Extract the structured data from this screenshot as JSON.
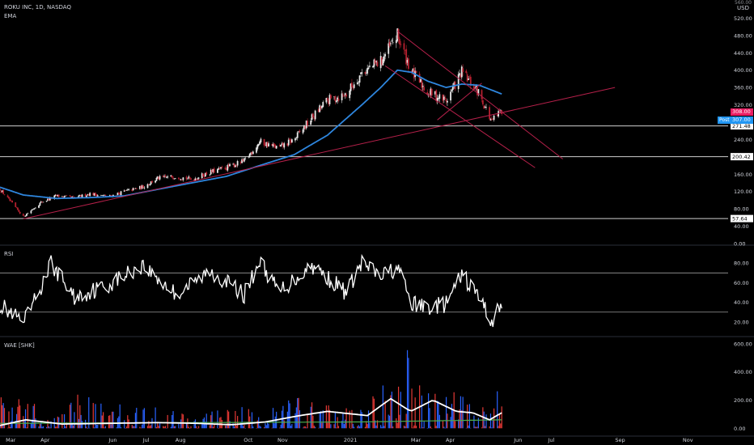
{
  "header": {
    "symbol": "ROKU INC, 1D, NASDAQ",
    "indicator": "EMA",
    "currency": "USD",
    "top_value": "560.00"
  },
  "colors": {
    "up": "#e8e8e8",
    "down": "#b5202f",
    "ema": "#2e86de",
    "trend": "#b5204a",
    "grid": "#cfcfcf",
    "rsi": "#ffffff",
    "wae_up": "#2962ff",
    "wae_down": "#e53935",
    "wae_line": "#ffffff",
    "wae_signal": "#4caf50"
  },
  "price_badges": {
    "last": {
      "label": "308.00",
      "color": "#e91e63"
    },
    "post_tag": "Post",
    "post": {
      "label": "307.00",
      "color": "#2196f3"
    }
  },
  "levels": [
    {
      "label": "271.48",
      "value": 271.48
    },
    {
      "label": "200.42",
      "value": 200.42
    },
    {
      "label": "57.64",
      "value": 57.64
    }
  ],
  "chart_data": [
    {
      "type": "candlestick",
      "title": "ROKU INC, 1D, NASDAQ",
      "ylim": [
        0,
        560
      ],
      "yticks": [
        0,
        40,
        80,
        120,
        160,
        200,
        240,
        280,
        320,
        360,
        400,
        440,
        480,
        520
      ],
      "ytick_labels": [
        "0.00",
        "40.00",
        "80.00",
        "120.00",
        "160.00",
        "200.00",
        "240.00",
        "280.00",
        "320.00",
        "360.00",
        "400.00",
        "440.00",
        "480.00",
        "520.00"
      ],
      "x_labels": [
        "Mar",
        "Apr",
        "Jun",
        "Jul",
        "Aug",
        "Oct",
        "Nov",
        "2021",
        "Mar",
        "Apr",
        "Jun",
        "Jul",
        "Sep",
        "Nov"
      ],
      "close_anchors": [
        [
          "2020-02-24",
          125
        ],
        [
          "2020-03-16",
          62
        ],
        [
          "2020-04-01",
          95
        ],
        [
          "2020-04-15",
          110
        ],
        [
          "2020-05-01",
          105
        ],
        [
          "2020-05-15",
          115
        ],
        [
          "2020-06-01",
          108
        ],
        [
          "2020-06-15",
          120
        ],
        [
          "2020-07-01",
          130
        ],
        [
          "2020-07-15",
          150
        ],
        [
          "2020-08-01",
          155
        ],
        [
          "2020-08-15",
          148
        ],
        [
          "2020-09-01",
          165
        ],
        [
          "2020-09-15",
          175
        ],
        [
          "2020-10-01",
          190
        ],
        [
          "2020-10-15",
          235
        ],
        [
          "2020-11-01",
          220
        ],
        [
          "2020-11-15",
          240
        ],
        [
          "2020-12-01",
          290
        ],
        [
          "2020-12-15",
          330
        ],
        [
          "2021-01-01",
          345
        ],
        [
          "2021-01-15",
          395
        ],
        [
          "2021-02-01",
          420
        ],
        [
          "2021-02-16",
          480
        ],
        [
          "2021-03-01",
          395
        ],
        [
          "2021-03-15",
          350
        ],
        [
          "2021-04-01",
          330
        ],
        [
          "2021-04-15",
          395
        ],
        [
          "2021-05-01",
          345
        ],
        [
          "2021-05-12",
          280
        ],
        [
          "2021-05-21",
          308
        ]
      ],
      "series": [
        {
          "name": "EMA",
          "points": [
            [
              "2020-02-24",
              130
            ],
            [
              "2020-03-16",
              112
            ],
            [
              "2020-04-15",
              104
            ],
            [
              "2020-05-15",
              106
            ],
            [
              "2020-06-15",
              110
            ],
            [
              "2020-07-15",
              125
            ],
            [
              "2020-08-15",
              140
            ],
            [
              "2020-09-15",
              155
            ],
            [
              "2020-10-15",
              180
            ],
            [
              "2020-11-15",
              205
            ],
            [
              "2020-12-15",
              250
            ],
            [
              "2021-01-15",
              320
            ],
            [
              "2021-02-01",
              360
            ],
            [
              "2021-02-16",
              400
            ],
            [
              "2021-03-01",
              395
            ],
            [
              "2021-03-15",
              375
            ],
            [
              "2021-04-01",
              360
            ],
            [
              "2021-04-15",
              368
            ],
            [
              "2021-05-01",
              365
            ],
            [
              "2021-05-21",
              345
            ]
          ]
        }
      ],
      "trendlines": [
        {
          "from": [
            "2020-03-16",
            57
          ],
          "to": [
            "2021-08-31",
            360
          ]
        },
        {
          "from": [
            "2021-02-16",
            490
          ],
          "to": [
            "2021-07-15",
            195
          ]
        },
        {
          "from": [
            "2021-02-05",
            410
          ],
          "to": [
            "2021-06-20",
            175
          ]
        },
        {
          "from": [
            "2021-03-24",
            285
          ],
          "to": [
            "2021-05-03",
            370
          ]
        }
      ]
    },
    {
      "type": "line",
      "title": "RSI",
      "ylim": [
        10,
        95
      ],
      "yticks": [
        20,
        40,
        60,
        80
      ],
      "ytick_labels": [
        "20.00",
        "40.00",
        "60.00",
        "80.00"
      ],
      "bands": [
        70,
        30
      ],
      "anchors": [
        [
          "2020-02-24",
          38
        ],
        [
          "2020-03-16",
          18
        ],
        [
          "2020-04-01",
          55
        ],
        [
          "2020-04-10",
          80
        ],
        [
          "2020-05-01",
          45
        ],
        [
          "2020-06-01",
          58
        ],
        [
          "2020-07-01",
          78
        ],
        [
          "2020-08-01",
          48
        ],
        [
          "2020-09-01",
          72
        ],
        [
          "2020-10-01",
          48
        ],
        [
          "2020-10-15",
          82
        ],
        [
          "2020-11-01",
          50
        ],
        [
          "2020-12-01",
          78
        ],
        [
          "2021-01-01",
          50
        ],
        [
          "2021-01-15",
          80
        ],
        [
          "2021-02-01",
          66
        ],
        [
          "2021-02-16",
          76
        ],
        [
          "2021-03-01",
          38
        ],
        [
          "2021-03-15",
          35
        ],
        [
          "2021-04-01",
          38
        ],
        [
          "2021-04-15",
          68
        ],
        [
          "2021-05-01",
          45
        ],
        [
          "2021-05-12",
          20
        ],
        [
          "2021-05-21",
          40
        ]
      ]
    },
    {
      "type": "bar",
      "title": "WAE [SHK]",
      "ylim": [
        -50,
        640
      ],
      "yticks": [
        0,
        200,
        400,
        600
      ],
      "ytick_labels": [
        "0.00",
        "200.00",
        "400.00",
        "600.00"
      ],
      "series": [
        {
          "name": "trend",
          "anchors": [
            [
              "2020-03-16",
              220
            ],
            [
              "2020-04-15",
              80
            ],
            [
              "2020-05-10",
              300
            ],
            [
              "2020-06-15",
              180
            ],
            [
              "2020-07-15",
              150
            ],
            [
              "2020-08-20",
              80
            ],
            [
              "2020-09-15",
              180
            ],
            [
              "2020-10-20",
              120
            ],
            [
              "2020-11-20",
              250
            ],
            [
              "2020-12-20",
              150
            ],
            [
              "2021-01-20",
              180
            ],
            [
              "2021-02-25",
              600
            ],
            [
              "2021-03-15",
              260
            ],
            [
              "2021-04-10",
              330
            ],
            [
              "2021-05-05",
              150
            ],
            [
              "2021-05-14",
              420
            ]
          ]
        },
        {
          "name": "explosion",
          "anchors": [
            [
              "2020-02-24",
              20
            ],
            [
              "2020-03-18",
              60
            ],
            [
              "2020-04-20",
              30
            ],
            [
              "2020-06-01",
              35
            ],
            [
              "2020-07-15",
              40
            ],
            [
              "2020-08-20",
              35
            ],
            [
              "2020-09-20",
              25
            ],
            [
              "2020-10-20",
              45
            ],
            [
              "2020-11-20",
              90
            ],
            [
              "2020-12-15",
              120
            ],
            [
              "2021-01-20",
              90
            ],
            [
              "2021-02-10",
              210
            ],
            [
              "2021-02-28",
              120
            ],
            [
              "2021-03-20",
              200
            ],
            [
              "2021-04-10",
              120
            ],
            [
              "2021-04-25",
              110
            ],
            [
              "2021-05-10",
              60
            ],
            [
              "2021-05-21",
              110
            ]
          ]
        },
        {
          "name": "deadzone",
          "anchors": [
            [
              "2020-02-24",
              35
            ],
            [
              "2021-01-15",
              45
            ],
            [
              "2021-05-21",
              60
            ]
          ]
        }
      ]
    }
  ]
}
